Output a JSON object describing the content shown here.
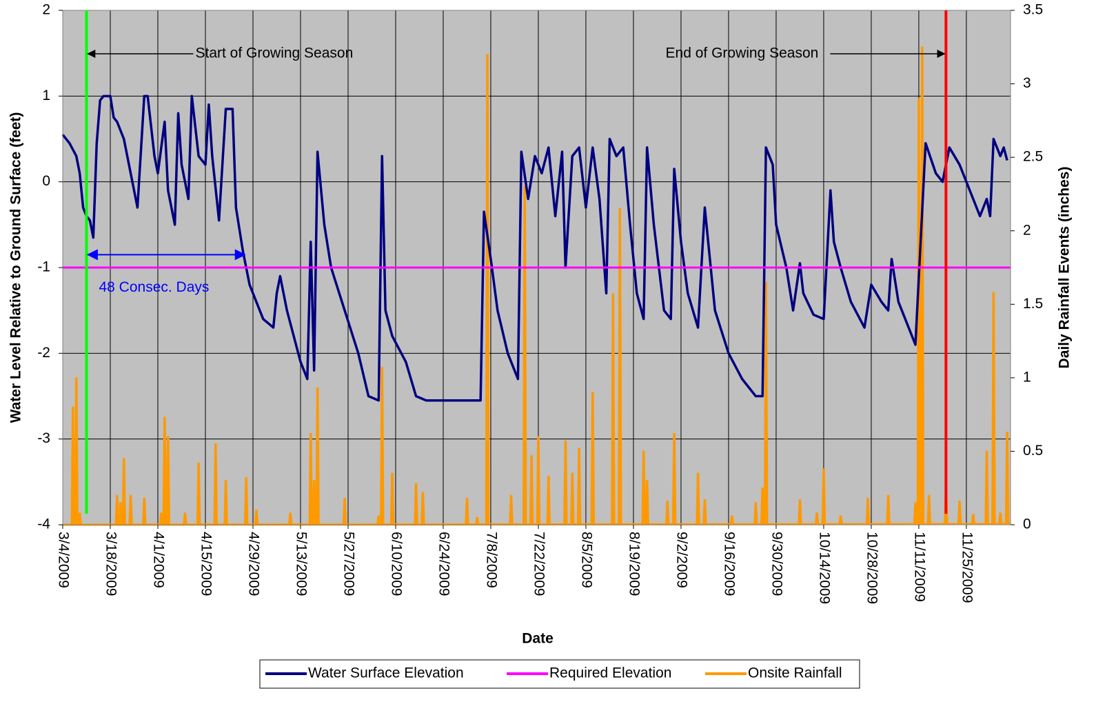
{
  "chart_data": {
    "type": "line",
    "x_label": "Date",
    "y_label": "Water Level Relative to Ground Surface (feet)",
    "y2_label": "Daily Rainfall Events (inches)",
    "xlim": [
      "3/4/2009",
      "12/8/2009"
    ],
    "xticks": [
      "3/4/2009",
      "3/18/2009",
      "4/1/2009",
      "4/15/2009",
      "4/29/2009",
      "5/13/2009",
      "5/27/2009",
      "6/10/2009",
      "6/24/2009",
      "7/8/2009",
      "7/22/2009",
      "8/5/2009",
      "8/19/2009",
      "9/2/2009",
      "9/16/2009",
      "9/30/2009",
      "10/14/2009",
      "10/28/2009",
      "11/11/2009",
      "11/25/2009"
    ],
    "ylim": [
      -4,
      2
    ],
    "yticks": [
      -4,
      -3,
      -2,
      -1,
      0,
      1,
      2
    ],
    "y2lim": [
      0,
      3.5
    ],
    "y2ticks": [
      0,
      0.5,
      1,
      1.5,
      2,
      2.5,
      3,
      3.5
    ],
    "grid": true,
    "legend": "bottom",
    "series": [
      {
        "name": "Water Surface Elevation",
        "color": "#000080",
        "x": [
          "3/4/2009",
          "3/6/2009",
          "3/8/2009",
          "3/9/2009",
          "3/10/2009",
          "3/11/2009",
          "3/12/2009",
          "3/13/2009",
          "3/14/2009",
          "3/15/2009",
          "3/16/2009",
          "3/18/2009",
          "3/19/2009",
          "3/20/2009",
          "3/22/2009",
          "3/24/2009",
          "3/26/2009",
          "3/28/2009",
          "3/29/2009",
          "3/31/2009",
          "4/1/2009",
          "4/3/2009",
          "4/4/2009",
          "4/6/2009",
          "4/7/2009",
          "4/8/2009",
          "4/10/2009",
          "4/11/2009",
          "4/13/2009",
          "4/15/2009",
          "4/16/2009",
          "4/17/2009",
          "4/19/2009",
          "4/21/2009",
          "4/23/2009",
          "4/24/2009",
          "4/26/2009",
          "4/28/2009",
          "4/30/2009",
          "5/2/2009",
          "5/5/2009",
          "5/6/2009",
          "5/7/2009",
          "5/9/2009",
          "5/11/2009",
          "5/13/2009",
          "5/15/2009",
          "5/16/2009",
          "5/17/2009",
          "5/18/2009",
          "5/20/2009",
          "5/22/2009",
          "5/26/2009",
          "5/30/2009",
          "6/2/2009",
          "6/5/2009",
          "6/6/2009",
          "6/7/2009",
          "6/9/2009",
          "6/13/2009",
          "6/16/2009",
          "6/19/2009",
          "6/25/2009",
          "7/5/2009",
          "7/6/2009",
          "7/8/2009",
          "7/10/2009",
          "7/13/2009",
          "7/16/2009",
          "7/17/2009",
          "7/19/2009",
          "7/21/2009",
          "7/23/2009",
          "7/25/2009",
          "7/27/2009",
          "7/29/2009",
          "7/30/2009",
          "8/1/2009",
          "8/3/2009",
          "8/5/2009",
          "8/7/2009",
          "8/9/2009",
          "8/11/2009",
          "8/12/2009",
          "8/14/2009",
          "8/16/2009",
          "8/18/2009",
          "8/20/2009",
          "8/22/2009",
          "8/23/2009",
          "8/25/2009",
          "8/28/2009",
          "8/30/2009",
          "8/31/2009",
          "9/2/2009",
          "9/4/2009",
          "9/7/2009",
          "9/9/2009",
          "9/12/2009",
          "9/16/2009",
          "9/20/2009",
          "9/24/2009",
          "9/26/2009",
          "9/27/2009",
          "9/29/2009",
          "9/30/2009",
          "10/3/2009",
          "10/5/2009",
          "10/7/2009",
          "10/8/2009",
          "10/11/2009",
          "10/14/2009",
          "10/16/2009",
          "10/17/2009",
          "10/19/2009",
          "10/22/2009",
          "10/26/2009",
          "10/28/2009",
          "10/31/2009",
          "11/2/2009",
          "11/3/2009",
          "11/5/2009",
          "11/8/2009",
          "11/10/2009",
          "11/13/2009",
          "11/16/2009",
          "11/18/2009",
          "11/20/2009",
          "11/23/2009",
          "11/26/2009",
          "11/29/2009",
          "12/1/2009",
          "12/2/2009",
          "12/3/2009",
          "12/5/2009",
          "12/6/2009",
          "12/7/2009"
        ],
        "values": [
          0.55,
          0.45,
          0.3,
          0.1,
          -0.3,
          -0.4,
          -0.45,
          -0.65,
          0.45,
          0.95,
          1.0,
          1.0,
          0.75,
          0.7,
          0.5,
          0.1,
          -0.3,
          1.0,
          1.0,
          0.3,
          0.1,
          0.7,
          -0.1,
          -0.5,
          0.8,
          0.2,
          -0.2,
          1.0,
          0.3,
          0.2,
          0.9,
          0.3,
          -0.45,
          0.85,
          0.85,
          -0.3,
          -0.8,
          -1.2,
          -1.4,
          -1.6,
          -1.7,
          -1.3,
          -1.1,
          -1.5,
          -1.8,
          -2.1,
          -2.3,
          -0.7,
          -2.2,
          0.35,
          -0.5,
          -1.0,
          -1.5,
          -2.0,
          -2.5,
          -2.55,
          0.3,
          -1.5,
          -1.8,
          -2.1,
          -2.5,
          -2.55,
          -2.55,
          -2.55,
          -0.35,
          -0.9,
          -1.5,
          -2.0,
          -2.3,
          0.35,
          -0.2,
          0.3,
          0.1,
          0.4,
          -0.4,
          0.35,
          -1.0,
          0.3,
          0.4,
          -0.3,
          0.4,
          -0.2,
          -1.3,
          0.5,
          0.3,
          0.4,
          -0.5,
          -1.3,
          -1.6,
          0.4,
          -0.5,
          -1.5,
          -1.6,
          0.15,
          -0.7,
          -1.3,
          -1.7,
          -0.3,
          -1.5,
          -2.0,
          -2.3,
          -2.5,
          -2.5,
          0.4,
          0.2,
          -0.5,
          -1.0,
          -1.5,
          -0.95,
          -1.3,
          -1.55,
          -1.6,
          -0.1,
          -0.7,
          -1.0,
          -1.4,
          -1.7,
          -1.2,
          -1.4,
          -1.5,
          -0.9,
          -1.4,
          -1.7,
          -1.9,
          0.45,
          0.1,
          0.0,
          0.4,
          0.2,
          -0.1,
          -0.4,
          -0.2,
          -0.4,
          0.5,
          0.3,
          0.4,
          0.25
        ]
      },
      {
        "name": "Required Elevation",
        "color": "#ff00ff",
        "x": [
          "3/4/2009",
          "12/8/2009"
        ],
        "values": [
          -1,
          -1
        ]
      },
      {
        "name": "Onsite Rainfall",
        "color": "#ff9900",
        "axis": "y2",
        "x": [
          "3/7/2009",
          "3/8/2009",
          "3/9/2009",
          "3/20/2009",
          "3/21/2009",
          "3/22/2009",
          "3/24/2009",
          "3/28/2009",
          "4/2/2009",
          "4/3/2009",
          "4/4/2009",
          "4/9/2009",
          "4/13/2009",
          "4/18/2009",
          "4/21/2009",
          "4/27/2009",
          "4/30/2009",
          "5/10/2009",
          "5/16/2009",
          "5/17/2009",
          "5/18/2009",
          "5/26/2009",
          "6/5/2009",
          "6/6/2009",
          "6/9/2009",
          "6/16/2009",
          "6/18/2009",
          "7/1/2009",
          "7/4/2009",
          "7/7/2009",
          "7/14/2009",
          "7/18/2009",
          "7/20/2009",
          "7/22/2009",
          "7/25/2009",
          "7/30/2009",
          "8/1/2009",
          "8/3/2009",
          "8/7/2009",
          "8/13/2009",
          "8/15/2009",
          "8/22/2009",
          "8/23/2009",
          "8/29/2009",
          "8/31/2009",
          "9/7/2009",
          "9/9/2009",
          "9/17/2009",
          "9/24/2009",
          "9/26/2009",
          "9/27/2009",
          "10/7/2009",
          "10/12/2009",
          "10/14/2009",
          "10/19/2009",
          "10/27/2009",
          "11/2/2009",
          "11/10/2009",
          "11/11/2009",
          "11/12/2009",
          "11/14/2009",
          "11/19/2009",
          "11/23/2009",
          "11/27/2009",
          "12/1/2009",
          "12/3/2009",
          "12/5/2009",
          "12/7/2009"
        ],
        "values": [
          0.8,
          1.0,
          0.08,
          0.2,
          0.15,
          0.45,
          0.2,
          0.18,
          0.08,
          0.73,
          0.6,
          0.08,
          0.42,
          0.55,
          0.3,
          0.32,
          0.1,
          0.08,
          0.62,
          0.3,
          0.93,
          0.18,
          0.06,
          1.07,
          0.35,
          0.28,
          0.22,
          0.18,
          0.05,
          3.2,
          0.2,
          2.3,
          0.47,
          0.6,
          0.33,
          0.57,
          0.35,
          0.52,
          0.9,
          1.57,
          2.15,
          0.5,
          0.3,
          0.16,
          0.62,
          0.35,
          0.17,
          0.06,
          0.15,
          0.25,
          1.65,
          0.17,
          0.08,
          0.38,
          0.06,
          0.18,
          0.2,
          0.15,
          2.9,
          3.25,
          0.2,
          0.25,
          0.16,
          0.07,
          0.5,
          1.58,
          0.08,
          0.63
        ]
      }
    ],
    "annotations": [
      {
        "text": "Start of Growing Season",
        "x": "3/11/2009",
        "color": "#00ff00"
      },
      {
        "text": "End of Growing Season",
        "x": "11/19/2009",
        "color": "#ff0000"
      },
      {
        "text": "48 Consec. Days",
        "x": [
          "3/11/2009",
          "4/27/2009"
        ],
        "y": -0.85,
        "color": "#0000ff"
      }
    ]
  }
}
